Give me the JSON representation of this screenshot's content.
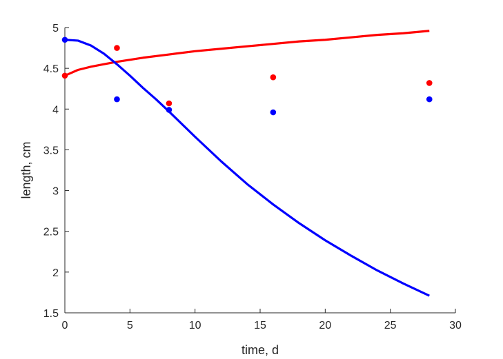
{
  "chart_data": {
    "type": "scatter",
    "xlabel": "time, d",
    "ylabel": "length, cm",
    "xlim": [
      0,
      30
    ],
    "ylim": [
      1.5,
      5
    ],
    "xticks": [
      0,
      5,
      10,
      15,
      20,
      25,
      30
    ],
    "yticks": [
      1.5,
      2,
      2.5,
      3,
      3.5,
      4,
      4.5,
      5
    ],
    "xtick_labels": [
      "0",
      "5",
      "10",
      "15",
      "20",
      "25",
      "30"
    ],
    "ytick_labels": [
      "1.5",
      "2",
      "2.5",
      "3",
      "3.5",
      "4",
      "4.5",
      "5"
    ],
    "grid": false,
    "series": [
      {
        "kind": "points",
        "color": "#ff0000",
        "x": [
          0,
          4,
          8,
          16,
          28
        ],
        "y": [
          4.41,
          4.75,
          4.07,
          4.39,
          4.32
        ]
      },
      {
        "kind": "points",
        "color": "#0000ff",
        "x": [
          0,
          4,
          8,
          16,
          28
        ],
        "y": [
          4.85,
          4.12,
          3.99,
          3.96,
          4.12
        ]
      },
      {
        "kind": "line",
        "color": "#ff0000",
        "x": [
          0,
          1,
          2,
          3,
          4,
          6,
          8,
          10,
          12,
          14,
          16,
          18,
          20,
          22,
          24,
          26,
          28
        ],
        "y": [
          4.41,
          4.48,
          4.52,
          4.55,
          4.58,
          4.63,
          4.67,
          4.71,
          4.74,
          4.77,
          4.8,
          4.83,
          4.85,
          4.88,
          4.91,
          4.93,
          4.96
        ]
      },
      {
        "kind": "line",
        "color": "#0000ff",
        "x": [
          0,
          1,
          2,
          3,
          4,
          5,
          6,
          7,
          8,
          10,
          12,
          14,
          16,
          18,
          20,
          22,
          24,
          26,
          28
        ],
        "y": [
          4.85,
          4.84,
          4.78,
          4.68,
          4.55,
          4.41,
          4.26,
          4.12,
          3.97,
          3.66,
          3.36,
          3.08,
          2.83,
          2.6,
          2.39,
          2.2,
          2.02,
          1.86,
          1.71
        ]
      }
    ]
  }
}
